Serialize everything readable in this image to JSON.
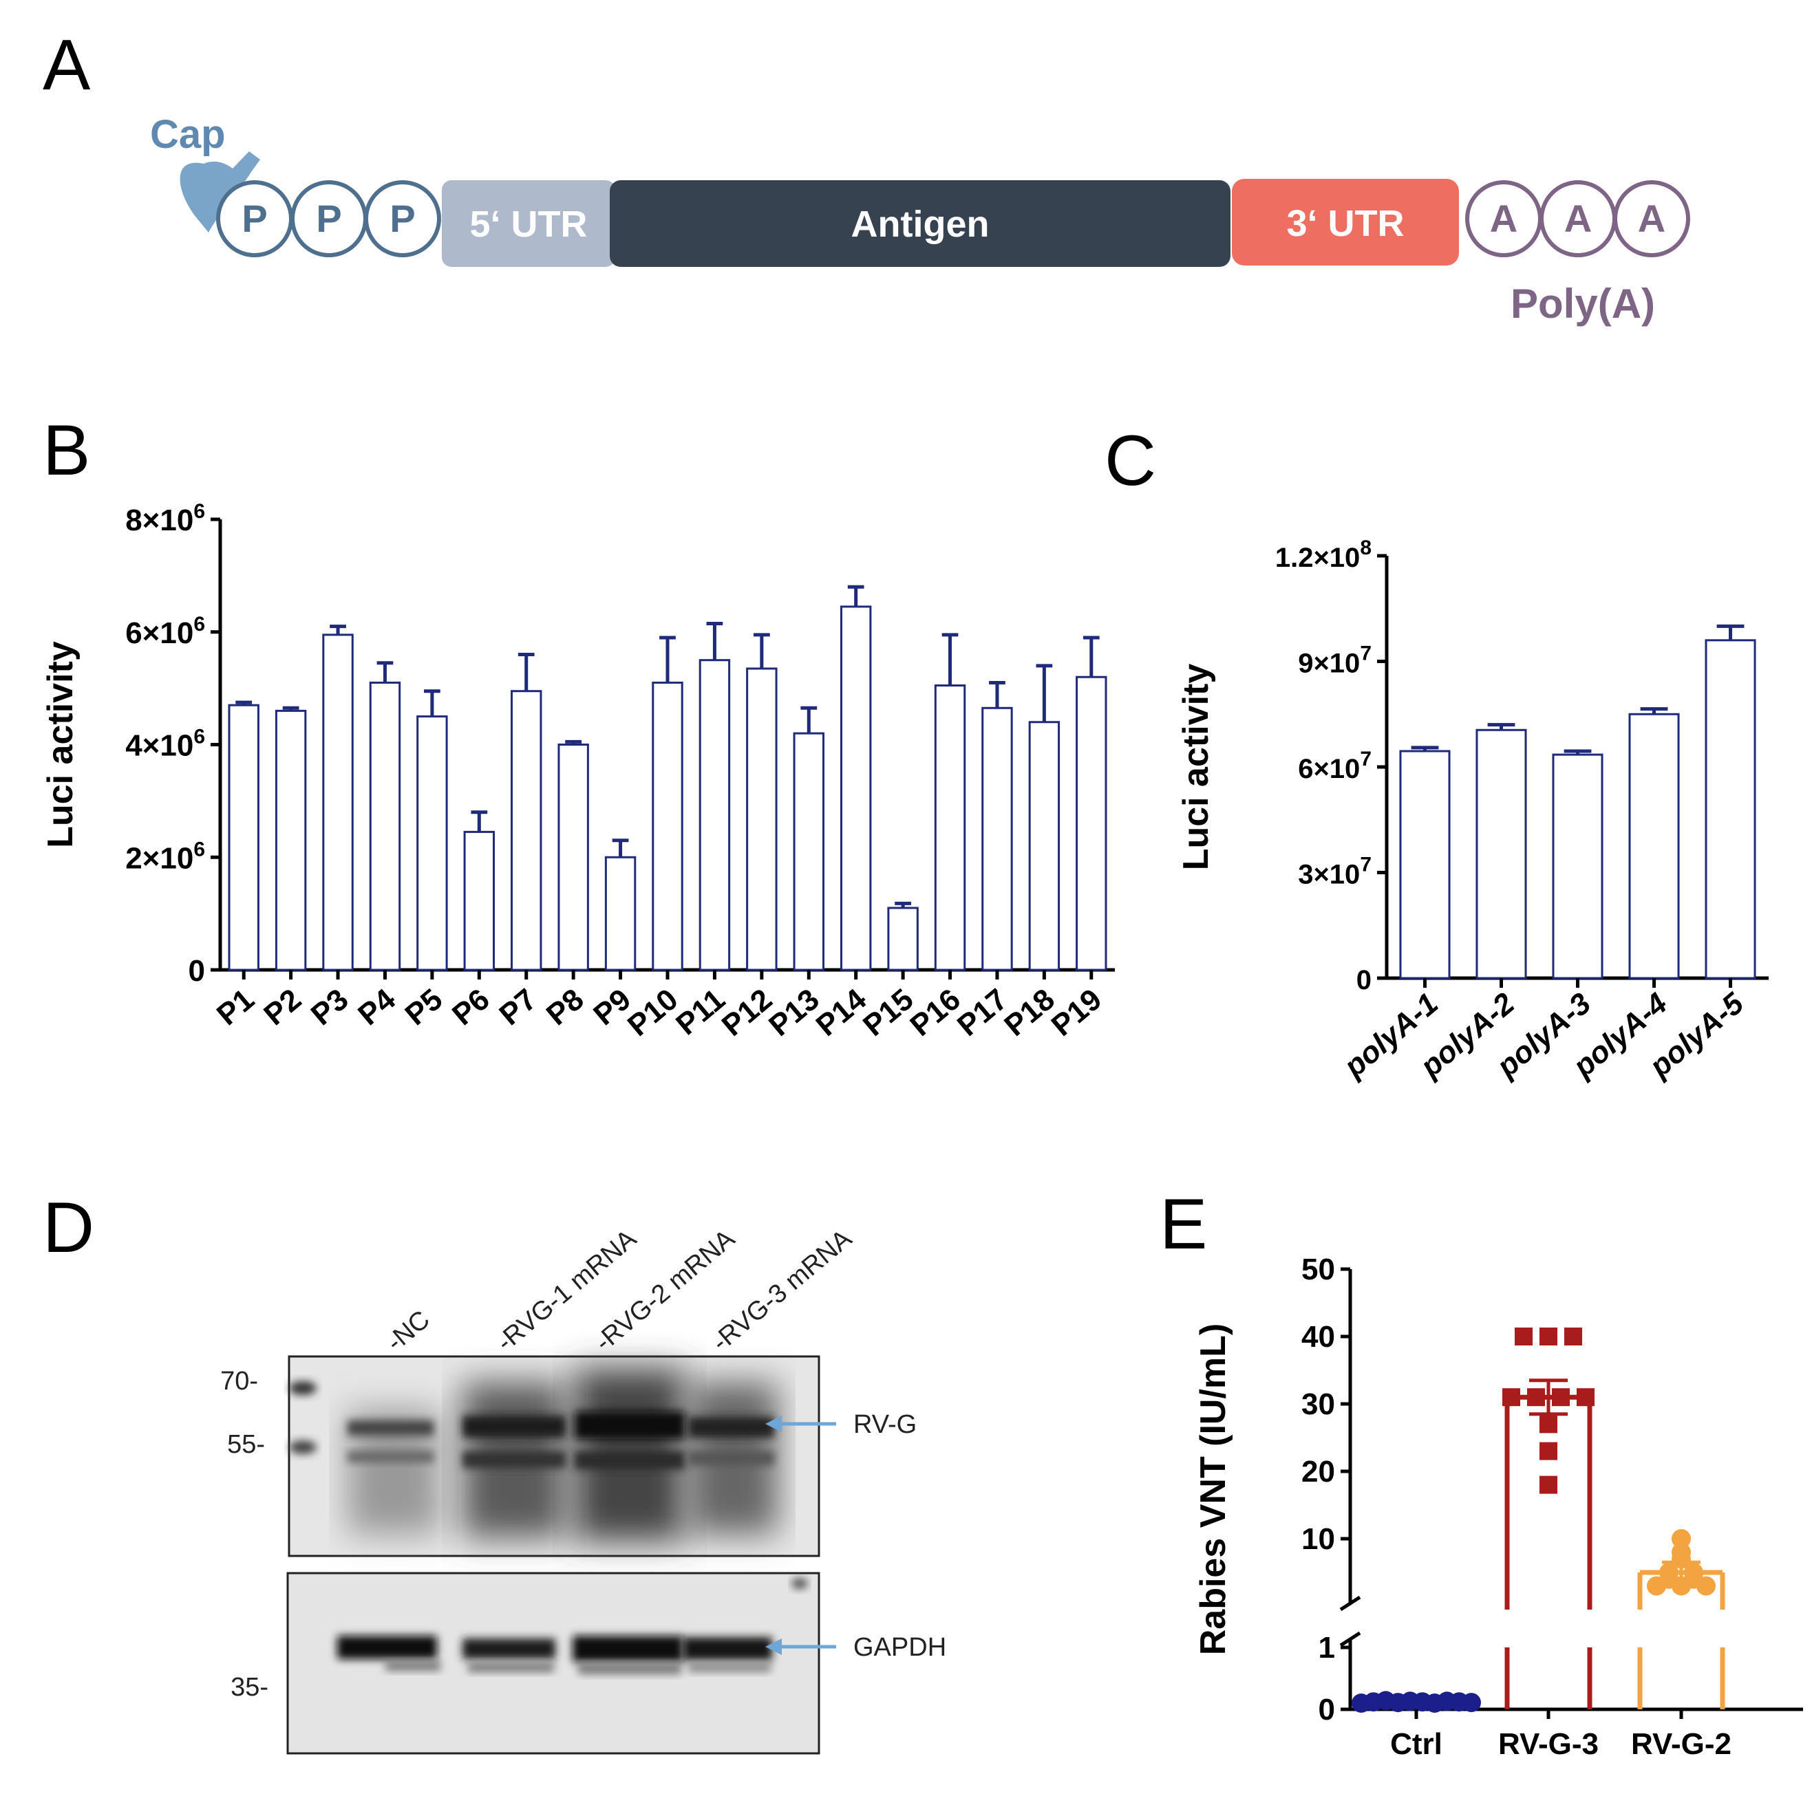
{
  "panels": {
    "a": "A",
    "b": "B",
    "c": "C",
    "d": "D",
    "e": "E"
  },
  "diagram": {
    "cap": "Cap",
    "phosphates": [
      "P",
      "P",
      "P"
    ],
    "utr5": "5‘ UTR",
    "antigen": "Antigen",
    "utr3": "3‘ UTR",
    "adenines": [
      "A",
      "A",
      "A"
    ],
    "polya_label": "Poly(A)",
    "colors": {
      "cap": "#7aa5c9",
      "phosphate": "#4f6f8e",
      "utr5": "#aeb9cb",
      "antigen": "#374250",
      "utr3": "#ee6e62",
      "polya": "#7e6485"
    }
  },
  "blot": {
    "lanes": [
      "-NC",
      "-RVG-1 mRNA",
      "-RVG-2 mRNA",
      "-RVG-3 mRNA"
    ],
    "markers_top": [
      "70-",
      "55-"
    ],
    "marker_bottom": "35-",
    "band_top": "RV-G",
    "band_bottom": "GAPDH",
    "arrow_color": "#6ea6d8"
  },
  "chart_data": [
    {
      "panel": "B",
      "type": "bar",
      "ylabel": "Luci activity",
      "ylim": [
        0,
        8000000
      ],
      "yticks": [
        {
          "base": "0",
          "exp": ""
        },
        {
          "base": "2×10",
          "exp": "6"
        },
        {
          "base": "4×10",
          "exp": "6"
        },
        {
          "base": "6×10",
          "exp": "6"
        },
        {
          "base": "8×10",
          "exp": "6"
        }
      ],
      "categories": [
        "P1",
        "P2",
        "P3",
        "P4",
        "P5",
        "P6",
        "P7",
        "P8",
        "P9",
        "P10",
        "P11",
        "P12",
        "P13",
        "P14",
        "P15",
        "P16",
        "P17",
        "P18",
        "P19"
      ],
      "values": [
        4700000,
        4600000,
        5950000,
        5100000,
        4500000,
        2450000,
        4950000,
        4000000,
        2000000,
        5100000,
        5500000,
        5350000,
        4200000,
        6450000,
        1100000,
        5050000,
        4650000,
        4400000,
        5200000
      ],
      "errors": [
        50000,
        50000,
        150000,
        350000,
        450000,
        350000,
        650000,
        50000,
        300000,
        800000,
        650000,
        600000,
        450000,
        350000,
        80000,
        900000,
        450000,
        1000000,
        700000
      ],
      "color": "#1f2a7a"
    },
    {
      "panel": "C",
      "type": "bar",
      "ylabel": "Luci activity",
      "ylim": [
        0,
        120000000
      ],
      "yticks": [
        {
          "base": "0",
          "exp": ""
        },
        {
          "base": "3×10",
          "exp": "7"
        },
        {
          "base": "6×10",
          "exp": "7"
        },
        {
          "base": "9×10",
          "exp": "7"
        },
        {
          "base": "1.2×10",
          "exp": "8"
        }
      ],
      "categories": [
        "polyA-1",
        "polyA-2",
        "polyA-3",
        "polyA-4",
        "polyA-5"
      ],
      "values": [
        64500000,
        70500000,
        63500000,
        75000000,
        96000000
      ],
      "errors": [
        1000000,
        1500000,
        1000000,
        1500000,
        4000000
      ],
      "color": "#1f2a7a"
    },
    {
      "panel": "E",
      "type": "scatter",
      "ylabel": "Rabies VNT (IU/mL)",
      "yticks_upper": [
        10,
        20,
        30,
        40,
        50
      ],
      "yticks_lower": [
        0,
        1
      ],
      "ytick_labels_upper": [
        "10",
        "20",
        "30",
        "40",
        "50"
      ],
      "ytick_labels_lower": [
        "0",
        "1"
      ],
      "categories": [
        "Ctrl",
        "RV-G-3",
        "RV-G-2"
      ],
      "series": [
        {
          "name": "Ctrl",
          "mean": 0.12,
          "sem": 0.02,
          "points": [
            0.1,
            0.12,
            0.14,
            0.11,
            0.13,
            0.12,
            0.1,
            0.13,
            0.12,
            0.11
          ],
          "color": "#1a1f8c"
        },
        {
          "name": "RV-G-3",
          "mean": 31,
          "sem": 2.5,
          "points": [
            40,
            40,
            40,
            31,
            31,
            31,
            31,
            27,
            23,
            18
          ],
          "color": "#a81c1c"
        },
        {
          "name": "RV-G-2",
          "mean": 5,
          "sem": 1.5,
          "points": [
            10,
            8,
            7,
            5,
            5,
            4,
            4,
            3,
            3,
            3
          ],
          "color": "#f4a341"
        }
      ]
    }
  ]
}
